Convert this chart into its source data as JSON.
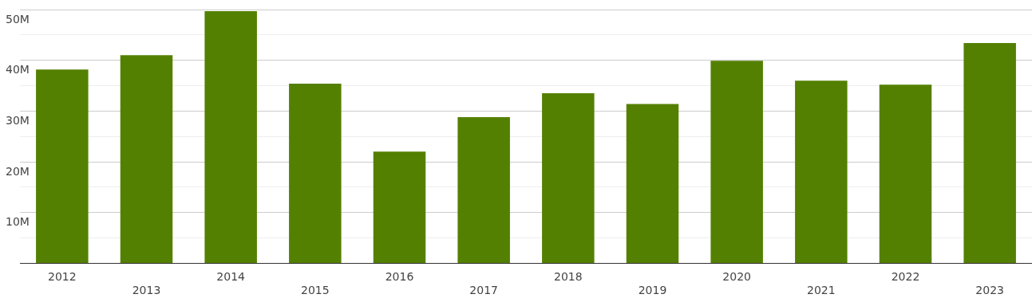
{
  "chart_data": {
    "type": "bar",
    "categories": [
      "2012",
      "2013",
      "2014",
      "2015",
      "2016",
      "2017",
      "2018",
      "2019",
      "2020",
      "2021",
      "2022",
      "2023"
    ],
    "values": [
      38.2,
      41.0,
      49.7,
      35.4,
      22.0,
      28.8,
      33.5,
      31.4,
      39.9,
      36.0,
      35.2,
      43.4
    ],
    "color": "#548002",
    "ylim": [
      0,
      50
    ],
    "yticks": [
      {
        "value": 0,
        "label": null
      },
      {
        "value": 5,
        "label": null
      },
      {
        "value": 10,
        "label": "10M"
      },
      {
        "value": 15,
        "label": null
      },
      {
        "value": 20,
        "label": "20M"
      },
      {
        "value": 25,
        "label": null
      },
      {
        "value": 30,
        "label": "30M"
      },
      {
        "value": 35,
        "label": null
      },
      {
        "value": 40,
        "label": "40M"
      },
      {
        "value": 45,
        "label": null
      },
      {
        "value": 50,
        "label": "50M"
      }
    ],
    "grid": "y",
    "legend": false
  }
}
